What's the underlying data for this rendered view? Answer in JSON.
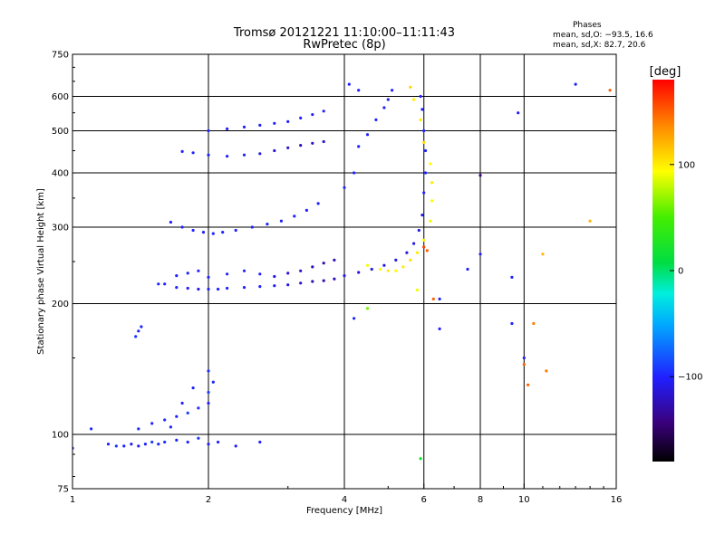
{
  "chart_data": {
    "type": "scatter",
    "title": "Tromsø 20121221 11:10:00–11:11:43",
    "subtitle": "RwPretec (8p)",
    "xlabel": "Frequency [MHz]",
    "ylabel": "Stationary phase Virtual Height [km]",
    "x_scale": "log",
    "y_scale": "log",
    "xlim": [
      1,
      16
    ],
    "ylim": [
      75,
      750
    ],
    "x_ticks": [
      1,
      2,
      4,
      6,
      8,
      10,
      16
    ],
    "x_tick_labels": [
      "1",
      "2",
      "4",
      "6",
      "8",
      "10",
      "16"
    ],
    "y_ticks": [
      75,
      100,
      200,
      300,
      400,
      500,
      600,
      750
    ],
    "y_tick_labels": [
      "75",
      "100",
      "200",
      "300",
      "400",
      "500",
      "600",
      "750"
    ],
    "grid": true,
    "stats": {
      "title": "Phases",
      "line1": "mean, sd,O: −93.5, 16.6",
      "line2": "mean, sd,X: 82.7, 20.6"
    },
    "colorbar": {
      "label": "[deg]",
      "range": [
        -180,
        180
      ],
      "ticks": [
        100,
        0,
        -100
      ],
      "tick_labels": [
        "100",
        "0",
        "−100"
      ]
    },
    "series": [
      {
        "values": [
          [
            1.0,
            93,
            -100
          ],
          [
            1.2,
            95,
            -100
          ],
          [
            1.25,
            94,
            -95
          ],
          [
            1.3,
            94,
            -100
          ],
          [
            1.35,
            95,
            -105
          ],
          [
            1.4,
            94,
            -100
          ],
          [
            1.45,
            95,
            -100
          ],
          [
            1.5,
            96,
            -90
          ],
          [
            1.55,
            95,
            -100
          ],
          [
            1.6,
            96,
            -95
          ],
          [
            1.7,
            97,
            -100
          ],
          [
            1.8,
            96,
            -100
          ],
          [
            1.9,
            98,
            -95
          ],
          [
            2.0,
            95,
            -100
          ],
          [
            2.1,
            96,
            -100
          ],
          [
            2.3,
            94,
            -100
          ],
          [
            2.6,
            96,
            -100
          ],
          [
            1.4,
            103,
            -95
          ],
          [
            1.5,
            106,
            -100
          ],
          [
            1.6,
            108,
            -95
          ],
          [
            1.7,
            110,
            -100
          ],
          [
            1.8,
            112,
            -90
          ],
          [
            1.9,
            115,
            -95
          ],
          [
            2.0,
            118,
            -100
          ],
          [
            2.0,
            125,
            -90
          ],
          [
            2.05,
            132,
            -100
          ],
          [
            2.0,
            140,
            -95
          ],
          [
            1.85,
            128,
            -100
          ],
          [
            1.75,
            118,
            -100
          ],
          [
            1.65,
            104,
            -100
          ],
          [
            1.1,
            103,
            -95
          ],
          [
            1.38,
            168,
            -95
          ],
          [
            1.4,
            173,
            -100
          ],
          [
            1.42,
            177,
            -100
          ],
          [
            1.55,
            222,
            -100
          ],
          [
            1.6,
            222,
            -100
          ],
          [
            1.7,
            218,
            -100
          ],
          [
            1.8,
            217,
            -105
          ],
          [
            1.9,
            216,
            -110
          ],
          [
            2.0,
            216,
            -100
          ],
          [
            2.1,
            216,
            -100
          ],
          [
            2.2,
            217,
            -100
          ],
          [
            2.4,
            218,
            -100
          ],
          [
            2.6,
            219,
            -100
          ],
          [
            2.8,
            220,
            -105
          ],
          [
            3.0,
            221,
            -110
          ],
          [
            3.2,
            223,
            -120
          ],
          [
            3.4,
            225,
            -125
          ],
          [
            3.6,
            226,
            -130
          ],
          [
            3.8,
            228,
            -125
          ],
          [
            1.7,
            232,
            -100
          ],
          [
            1.8,
            235,
            -100
          ],
          [
            1.9,
            238,
            -100
          ],
          [
            2.0,
            230,
            -100
          ],
          [
            2.2,
            234,
            -100
          ],
          [
            2.4,
            238,
            -100
          ],
          [
            2.6,
            234,
            -100
          ],
          [
            2.8,
            231,
            -110
          ],
          [
            3.0,
            235,
            -115
          ],
          [
            3.2,
            238,
            -120
          ],
          [
            3.4,
            243,
            -125
          ],
          [
            3.6,
            248,
            -130
          ],
          [
            3.8,
            252,
            -125
          ],
          [
            4.0,
            232,
            -110
          ],
          [
            4.3,
            236,
            -115
          ],
          [
            4.6,
            240,
            -110
          ],
          [
            4.9,
            245,
            -110
          ],
          [
            5.2,
            252,
            -110
          ],
          [
            5.5,
            262,
            -110
          ],
          [
            5.7,
            275,
            -110
          ],
          [
            5.85,
            295,
            -110
          ],
          [
            5.95,
            320,
            -110
          ],
          [
            6.0,
            360,
            -100
          ],
          [
            6.05,
            400,
            -100
          ],
          [
            6.05,
            450,
            -100
          ],
          [
            6.0,
            500,
            -100
          ],
          [
            5.95,
            560,
            -100
          ],
          [
            5.9,
            600,
            -100
          ],
          [
            1.65,
            308,
            -100
          ],
          [
            1.75,
            300,
            -100
          ],
          [
            1.85,
            295,
            -100
          ],
          [
            1.95,
            292,
            -100
          ],
          [
            2.05,
            290,
            -100
          ],
          [
            2.15,
            292,
            -100
          ],
          [
            2.3,
            295,
            -100
          ],
          [
            2.5,
            300,
            -100
          ],
          [
            2.7,
            305,
            -100
          ],
          [
            2.9,
            310,
            -100
          ],
          [
            3.1,
            318,
            -100
          ],
          [
            3.3,
            328,
            -100
          ],
          [
            3.5,
            340,
            -100
          ],
          [
            1.75,
            448,
            -100
          ],
          [
            1.85,
            445,
            -100
          ],
          [
            2.0,
            440,
            -100
          ],
          [
            2.2,
            437,
            -100
          ],
          [
            2.4,
            440,
            -100
          ],
          [
            2.6,
            443,
            -110
          ],
          [
            2.8,
            450,
            -115
          ],
          [
            3.0,
            457,
            -120
          ],
          [
            3.2,
            463,
            -125
          ],
          [
            3.4,
            468,
            -120
          ],
          [
            3.6,
            472,
            -115
          ],
          [
            2.0,
            500,
            -100
          ],
          [
            2.2,
            505,
            -100
          ],
          [
            2.4,
            510,
            -100
          ],
          [
            2.6,
            515,
            -100
          ],
          [
            2.8,
            520,
            -100
          ],
          [
            3.0,
            525,
            -100
          ],
          [
            3.2,
            535,
            -100
          ],
          [
            3.4,
            545,
            -100
          ],
          [
            3.6,
            555,
            -100
          ],
          [
            4.0,
            370,
            -100
          ],
          [
            4.2,
            400,
            -100
          ],
          [
            4.3,
            460,
            -100
          ],
          [
            4.5,
            490,
            -100
          ],
          [
            4.7,
            530,
            -100
          ],
          [
            4.9,
            565,
            -100
          ],
          [
            5.0,
            590,
            -100
          ],
          [
            5.1,
            620,
            -100
          ],
          [
            4.1,
            640,
            -100
          ],
          [
            4.3,
            620,
            -100
          ],
          [
            4.5,
            245,
            90
          ],
          [
            4.8,
            240,
            95
          ],
          [
            5.0,
            238,
            100
          ],
          [
            5.2,
            238,
            95
          ],
          [
            5.4,
            243,
            100
          ],
          [
            5.6,
            252,
            105
          ],
          [
            5.8,
            262,
            100
          ],
          [
            6.0,
            280,
            95
          ],
          [
            6.2,
            310,
            90
          ],
          [
            6.25,
            345,
            95
          ],
          [
            6.25,
            380,
            100
          ],
          [
            6.2,
            420,
            95
          ],
          [
            6.0,
            470,
            105
          ],
          [
            5.9,
            530,
            100
          ],
          [
            5.7,
            590,
            100
          ],
          [
            5.6,
            630,
            110
          ],
          [
            6.1,
            265,
            150
          ],
          [
            6.0,
            270,
            160
          ],
          [
            5.8,
            215,
            90
          ],
          [
            6.3,
            205,
            150
          ],
          [
            6.5,
            205,
            -100
          ],
          [
            4.2,
            185,
            -100
          ],
          [
            4.5,
            195,
            60
          ],
          [
            6.5,
            175,
            -100
          ],
          [
            5.9,
            88,
            20
          ],
          [
            7.5,
            240,
            -100
          ],
          [
            8.0,
            260,
            -100
          ],
          [
            8.0,
            395,
            -140
          ],
          [
            9.4,
            230,
            -100
          ],
          [
            9.4,
            180,
            -100
          ],
          [
            10.0,
            150,
            -100
          ],
          [
            10.0,
            145,
            150
          ],
          [
            10.2,
            130,
            150
          ],
          [
            10.5,
            180,
            140
          ],
          [
            11.2,
            140,
            140
          ],
          [
            9.7,
            550,
            -100
          ],
          [
            13.0,
            640,
            -100
          ],
          [
            15.5,
            620,
            150
          ],
          [
            14.0,
            310,
            120
          ],
          [
            11.0,
            260,
            120
          ]
        ]
      }
    ]
  }
}
